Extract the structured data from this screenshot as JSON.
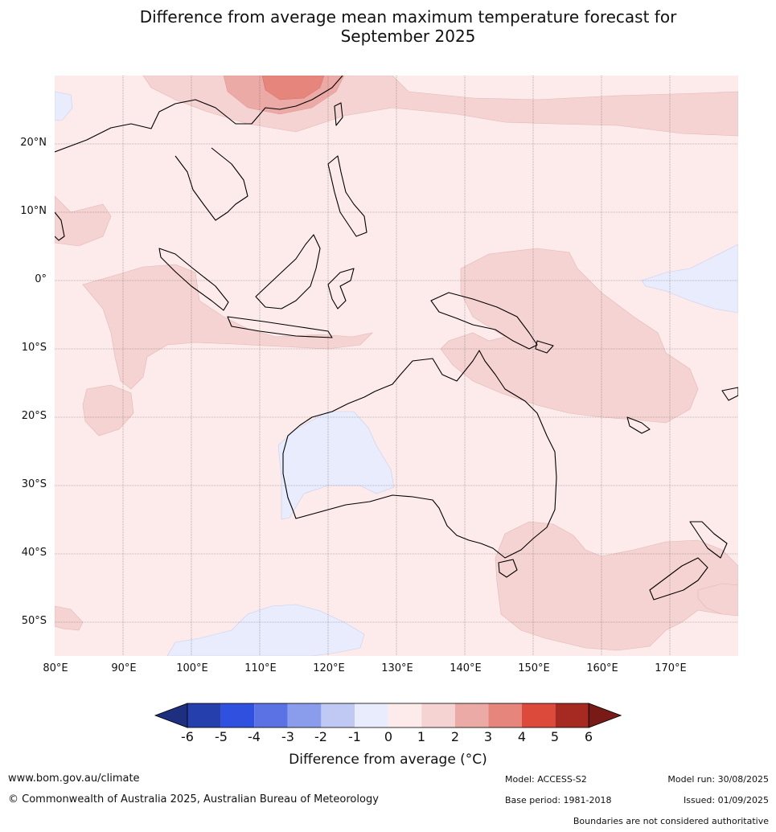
{
  "title": {
    "line1": "Difference from average mean maximum temperature forecast for",
    "line2": "September 2025"
  },
  "map": {
    "lat_labels": [
      "20°N",
      "10°N",
      "0°",
      "10°S",
      "20°S",
      "30°S",
      "40°S",
      "50°S"
    ],
    "lon_labels": [
      "80°E",
      "90°E",
      "100°E",
      "110°E",
      "120°E",
      "130°E",
      "140°E",
      "150°E",
      "160°E",
      "170°E"
    ],
    "lat_range": [
      -55,
      30
    ],
    "lon_range": [
      80,
      180
    ]
  },
  "colorbar": {
    "ticks": [
      "-6",
      "-5",
      "-4",
      "-3",
      "-2",
      "-1",
      "0",
      "1",
      "2",
      "3",
      "4",
      "5",
      "6"
    ],
    "colors": [
      "#1e2f80",
      "#253fac",
      "#3050e0",
      "#5a72e4",
      "#8a9cec",
      "#c0c8f4",
      "#e8ecfc",
      "#fcebea",
      "#f5d3d2",
      "#ecaaa6",
      "#e6857c",
      "#dc4a3c",
      "#a72a22",
      "#7a1a16"
    ],
    "label": "Difference from average (°C)"
  },
  "footer": {
    "website": "www.bom.gov.au/climate",
    "copyright": "© Commonwealth of Australia 2025, Australian Bureau of Meteorology",
    "model": "Model: ACCESS-S2",
    "base_period": "Base period: 1981-2018",
    "model_run": "Model run: 30/08/2025",
    "issued": "Issued: 01/09/2025",
    "disclaimer": "Boundaries are not considered authoritative"
  }
}
